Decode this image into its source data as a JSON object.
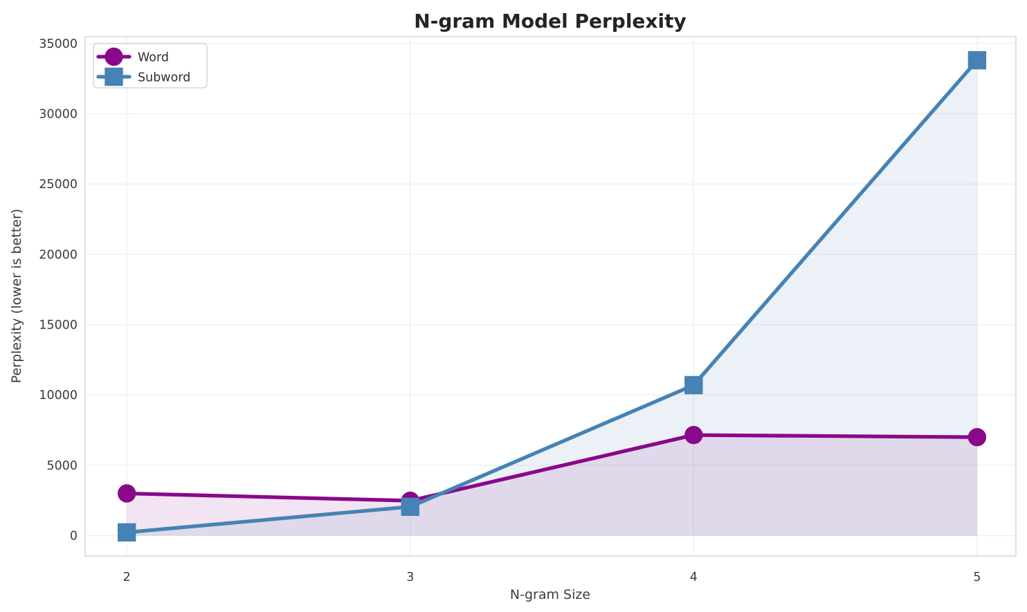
{
  "chart_data": {
    "type": "line",
    "title": "N-gram Model Perplexity",
    "xlabel": "N-gram Size",
    "ylabel": "Perplexity (lower is better)",
    "x": [
      2,
      3,
      4,
      5
    ],
    "xtick_labels": [
      "2",
      "3",
      "4",
      "5"
    ],
    "ytick_values": [
      0,
      5000,
      10000,
      15000,
      20000,
      25000,
      30000,
      35000
    ],
    "ytick_labels": [
      "0",
      "5000",
      "10000",
      "15000",
      "20000",
      "25000",
      "30000",
      "35000"
    ],
    "xlim": [
      1.853,
      5.137
    ],
    "ylim": [
      -1450,
      35480
    ],
    "grid": true,
    "legend_position": "upper left",
    "series": [
      {
        "name": "Word",
        "marker": "circle",
        "color": "#8A088A",
        "values": [
          3000,
          2480,
          7150,
          7000
        ]
      },
      {
        "name": "Subword",
        "marker": "square",
        "color": "#4682B4",
        "values": [
          230,
          2050,
          10700,
          33800
        ]
      }
    ],
    "fill_under_lines": true,
    "fill_alpha": 0.11
  },
  "styles": {
    "grid_color": "#efefef",
    "spine_color": "#d9d9d9",
    "background": "#ffffff"
  }
}
